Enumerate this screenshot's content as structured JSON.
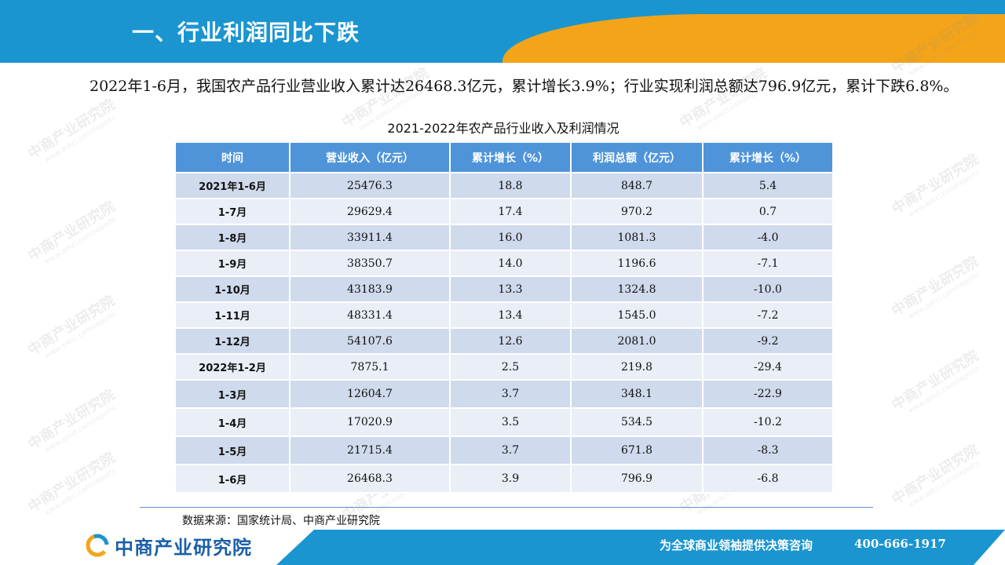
{
  "header": {
    "title": "一、行业利润同比下跌"
  },
  "intro": "2022年1-6月，我国农产品行业营业收入累计达26468.3亿元，累计增长3.9%；行业实现利润总额达796.9亿元，累计下跌6.8%。",
  "table": {
    "title": "2021-2022年农产品行业收入及利润情况",
    "columns": [
      "时间",
      "营业收入（亿元）",
      "累计增长（%）",
      "利润总额（亿元）",
      "累计增长（%）"
    ],
    "rows": [
      [
        "2021年1-6月",
        "25476.3",
        "18.8",
        "848.7",
        "5.4"
      ],
      [
        "1-7月",
        "29629.4",
        "17.4",
        "970.2",
        "0.7"
      ],
      [
        "1-8月",
        "33911.4",
        "16.0",
        "1081.3",
        "-4.0"
      ],
      [
        "1-9月",
        "38350.7",
        "14.0",
        "1196.6",
        "-7.1"
      ],
      [
        "1-10月",
        "43183.9",
        "13.3",
        "1324.8",
        "-10.0"
      ],
      [
        "1-11月",
        "48331.4",
        "13.4",
        "1545.0",
        "-7.2"
      ],
      [
        "1-12月",
        "54107.6",
        "12.6",
        "2081.0",
        "-9.2"
      ],
      [
        "2022年1-2月",
        "7875.1",
        "2.5",
        "219.8",
        "-29.4"
      ],
      [
        "1-3月",
        "12604.7",
        "3.7",
        "348.1",
        "-22.9"
      ],
      [
        "1-4月",
        "17020.9",
        "3.5",
        "534.5",
        "-10.2"
      ],
      [
        "1-5月",
        "21715.4",
        "3.7",
        "671.8",
        "-8.3"
      ],
      [
        "1-6月",
        "26468.3",
        "3.9",
        "796.9",
        "-6.8"
      ]
    ]
  },
  "source": "数据来源：国家统计局、中商产业研究院",
  "footer": {
    "logo_text": "中商产业研究院",
    "slogan": "为全球商业领袖提供决策咨询",
    "phone": "400-666-1917"
  },
  "watermark": {
    "main": "中商产业研究院",
    "sub": "www.askci.com/reports"
  },
  "colors": {
    "header_blue": "#1a95d0",
    "accent_orange": "#f4a418",
    "table_header": "#4f94d9",
    "row_odd": "#cfdaec",
    "row_even": "#e9eef7"
  }
}
